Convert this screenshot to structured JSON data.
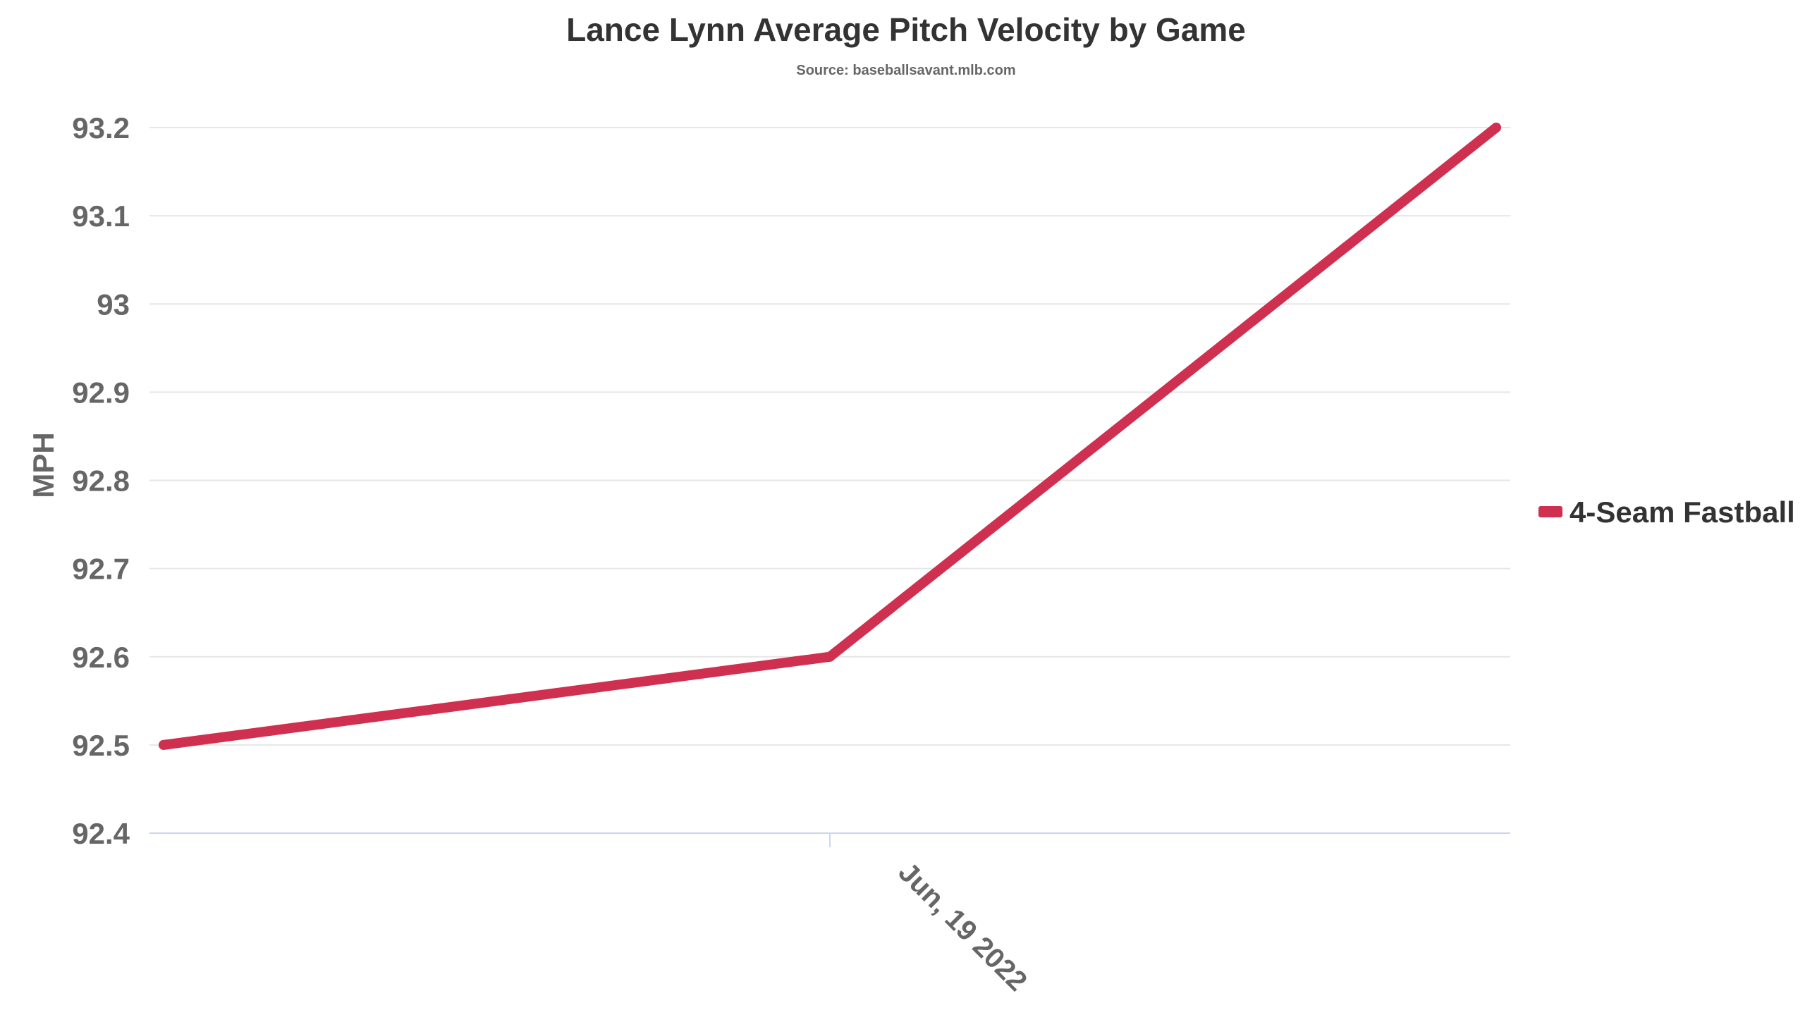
{
  "chart_data": {
    "type": "line",
    "title": "Lance Lynn Average Pitch Velocity by Game",
    "subtitle": "Source: baseballsavant.mlb.com",
    "xlabel": "",
    "ylabel": "MPH",
    "x_tick_labels": [
      "Jun, 19 2022"
    ],
    "ylim": [
      92.4,
      93.2
    ],
    "y_ticks": [
      92.4,
      92.5,
      92.6,
      92.7,
      92.8,
      92.9,
      93,
      93.1,
      93.2
    ],
    "y_tick_labels": [
      "92.4",
      "92.5",
      "92.6",
      "92.7",
      "92.8",
      "92.9",
      "93",
      "93.1",
      "93.2"
    ],
    "grid": true,
    "legend_position": "right",
    "series": [
      {
        "name": "4-Seam Fastball",
        "color": "#d0304f",
        "values": [
          92.5,
          92.6,
          93.2
        ]
      }
    ]
  }
}
